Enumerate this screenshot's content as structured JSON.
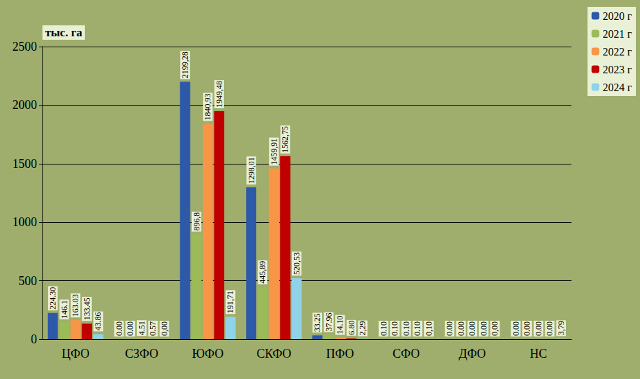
{
  "chart_data": {
    "type": "bar",
    "ylabel": "тыс. га",
    "categories": [
      "ЦФО",
      "СЗФО",
      "ЮФО",
      "СКФО",
      "ПФО",
      "СФО",
      "ДФО",
      "НС"
    ],
    "series": [
      {
        "name": "2020 г",
        "color": "#2e59a8",
        "values": [
          224.3,
          0.0,
          2199.28,
          1298.01,
          33.25,
          0.1,
          0.0,
          0.0
        ],
        "value_labels": [
          "224.30",
          "0.00",
          "2199,28",
          "1298,01",
          "33.25",
          "0.10",
          "0.00",
          "0.00"
        ]
      },
      {
        "name": "2021 г",
        "color": "#9bbb59",
        "values": [
          146.1,
          0.0,
          896.8,
          445.89,
          37.96,
          0.1,
          0.0,
          0.0
        ],
        "value_labels": [
          "146.1",
          "0.00",
          "896,8",
          "445,89",
          "37.96",
          "0.10",
          "0.00",
          "0.00"
        ]
      },
      {
        "name": "2022 г",
        "color": "#f79646",
        "values": [
          163.03,
          4.51,
          1840.93,
          1459.91,
          14.1,
          0.1,
          0.0,
          0.0
        ],
        "value_labels": [
          "163.03",
          "4.51",
          "1840,93",
          "1459,91",
          "14.10",
          "0.10",
          "0.00",
          "0.00"
        ]
      },
      {
        "name": "2023 г",
        "color": "#c00000",
        "values": [
          133.45,
          0.57,
          1949.48,
          1562.75,
          6.8,
          0.1,
          0.0,
          0.0
        ],
        "value_labels": [
          "133.45",
          "0.57",
          "1949,48",
          "1562,75",
          "6.80",
          "0.10",
          "0.00",
          "0.00"
        ]
      },
      {
        "name": "2024 г",
        "color": "#8fd3ea",
        "values": [
          43.86,
          0.0,
          191.71,
          520.53,
          2.29,
          0.1,
          0.0,
          3.79
        ],
        "value_labels": [
          "43.86",
          "0,00",
          "191,71",
          "520,53",
          "2,29",
          "0,10",
          "0,00",
          "3,79"
        ]
      }
    ],
    "ylim": [
      0,
      2500
    ],
    "yticks": [
      0,
      500,
      1000,
      1500,
      2000,
      2500
    ],
    "grid": true,
    "legend": "upper right",
    "data_labels": true
  }
}
